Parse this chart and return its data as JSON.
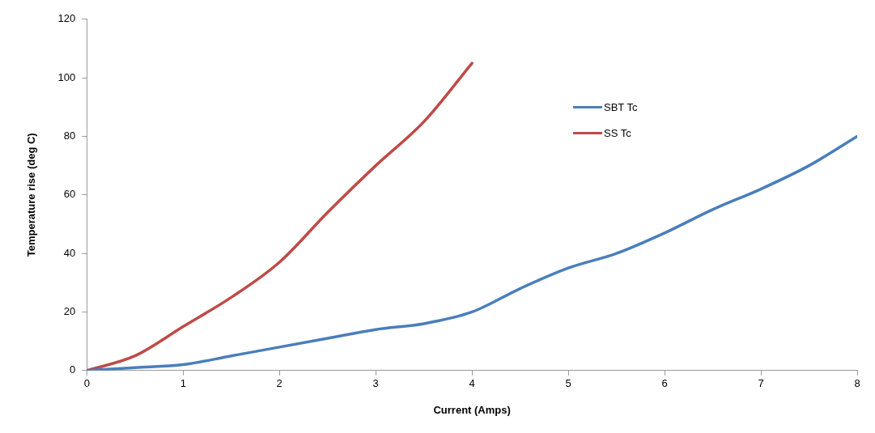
{
  "chart_data": {
    "type": "line",
    "xlabel": "Current (Amps)",
    "ylabel": "Temperature rise (deg C)",
    "xlim": [
      0,
      8
    ],
    "xticks": [
      0,
      1,
      2,
      3,
      4,
      5,
      6,
      7,
      8
    ],
    "ylim": [
      0,
      120
    ],
    "yticks": [
      0,
      20,
      40,
      60,
      80,
      100,
      120
    ],
    "grid": false,
    "legend": "top right",
    "marker": "none",
    "line_style": "solid",
    "series": [
      {
        "name": "SBT Tc",
        "color": "#4a7ebb",
        "x": [
          0,
          0.5,
          1,
          1.5,
          2,
          2.5,
          3,
          3.5,
          4,
          4.5,
          5,
          5.5,
          6,
          6.5,
          7,
          7.5,
          8
        ],
        "values": [
          0,
          1,
          2,
          5,
          8,
          11,
          14,
          16,
          20,
          28,
          35,
          40,
          47,
          55,
          62,
          70,
          80
        ]
      },
      {
        "name": "SS Tc",
        "color": "#be4b48",
        "x": [
          0,
          0.5,
          1,
          1.5,
          2,
          2.5,
          3,
          3.5,
          4
        ],
        "values": [
          0,
          5,
          15,
          25,
          37,
          54,
          70,
          85,
          105
        ]
      }
    ]
  }
}
